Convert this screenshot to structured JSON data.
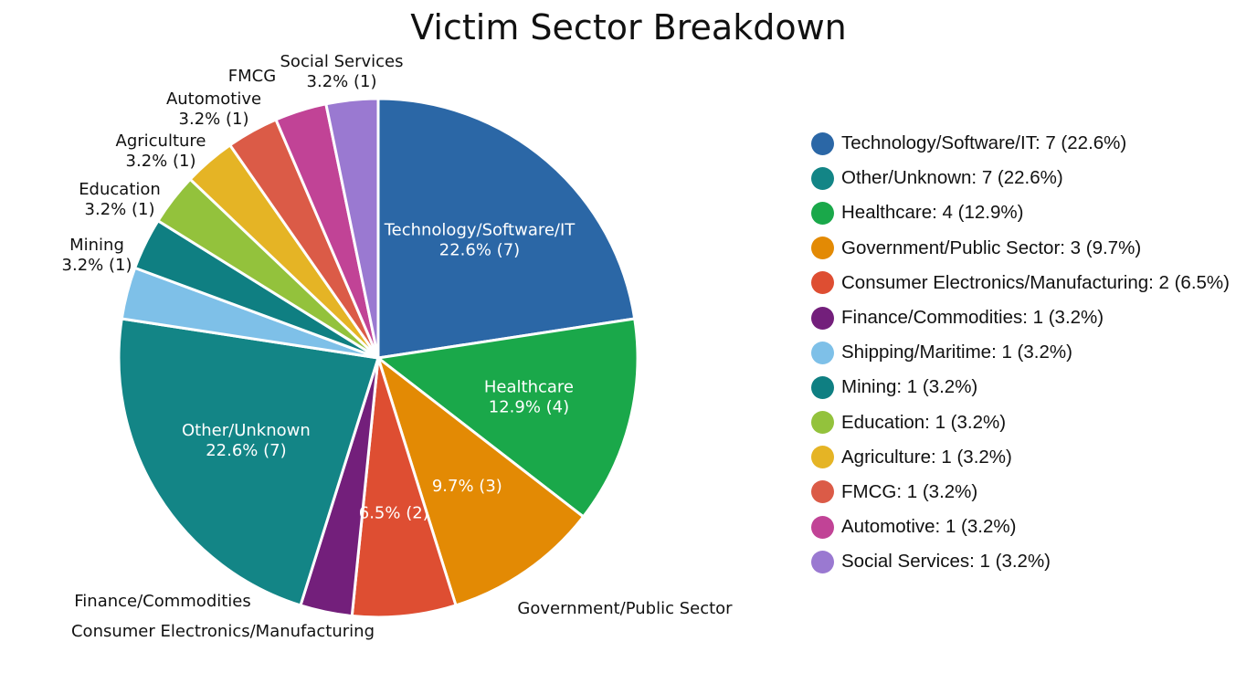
{
  "chart_data": {
    "type": "pie",
    "title": "Victim Sector Breakdown",
    "slices": [
      {
        "label": "Technology/Software/IT",
        "value": 7,
        "percent": "22.6%",
        "color": "#2b67a6",
        "legend": "Technology/Software/IT: 7 (22.6%)",
        "slice_label_name": "Technology/Software/IT",
        "slice_label_value": "22.6% (7)"
      },
      {
        "label": "Healthcare",
        "value": 4,
        "percent": "12.9%",
        "color": "#1aa84a",
        "legend": "Healthcare: 4 (12.9%)",
        "slice_label_name": "Healthcare",
        "slice_label_value": "12.9% (4)"
      },
      {
        "label": "Government/Public Sector",
        "value": 3,
        "percent": "9.7%",
        "color": "#e38a04",
        "legend": "Government/Public Sector: 3 (9.7%)",
        "slice_label_name": "",
        "slice_label_value": "9.7% (3)"
      },
      {
        "label": "Consumer Electronics/Manufacturing",
        "value": 2,
        "percent": "6.5%",
        "color": "#de4e32",
        "legend": "Consumer Electronics/Manufacturing: 2 (6.5%)",
        "slice_label_name": "",
        "slice_label_value": "6.5% (2)"
      },
      {
        "label": "Finance/Commodities",
        "value": 1,
        "percent": "3.2%",
        "color": "#731f7b",
        "legend": "Finance/Commodities: 1 (3.2%)",
        "slice_label_name": "",
        "slice_label_value": ""
      },
      {
        "label": "Other/Unknown",
        "value": 7,
        "percent": "22.6%",
        "color": "#138586",
        "legend": "Other/Unknown: 7 (22.6%)",
        "slice_label_name": "Other/Unknown",
        "slice_label_value": "22.6% (7)"
      },
      {
        "label": "Shipping/Maritime",
        "value": 1,
        "percent": "3.2%",
        "color": "#7ec0e8",
        "legend": "Shipping/Maritime: 1 (3.2%)",
        "slice_label_name": "",
        "slice_label_value": ""
      },
      {
        "label": "Mining",
        "value": 1,
        "percent": "3.2%",
        "color": "#0f7f82",
        "legend": "Mining: 1 (3.2%)",
        "slice_label_name": "",
        "slice_label_value": ""
      },
      {
        "label": "Education",
        "value": 1,
        "percent": "3.2%",
        "color": "#93c23c",
        "legend": "Education: 1 (3.2%)",
        "slice_label_name": "",
        "slice_label_value": ""
      },
      {
        "label": "Agriculture",
        "value": 1,
        "percent": "3.2%",
        "color": "#e5b425",
        "legend": "Agriculture: 1 (3.2%)",
        "slice_label_name": "",
        "slice_label_value": ""
      },
      {
        "label": "FMCG",
        "value": 1,
        "percent": "3.2%",
        "color": "#db5b47",
        "legend": "FMCG: 1 (3.2%)",
        "slice_label_name": "",
        "slice_label_value": ""
      },
      {
        "label": "Automotive",
        "value": 1,
        "percent": "3.2%",
        "color": "#c14396",
        "legend": "Automotive: 1 (3.2%)",
        "slice_label_name": "",
        "slice_label_value": ""
      },
      {
        "label": "Social Services",
        "value": 1,
        "percent": "3.2%",
        "color": "#9a79d1",
        "legend": "Social Services: 1 (3.2%)",
        "slice_label_name": "",
        "slice_label_value": ""
      }
    ],
    "legend_order": [
      "Technology/Software/IT",
      "Other/Unknown",
      "Healthcare",
      "Government/Public Sector",
      "Consumer Electronics/Manufacturing",
      "Finance/Commodities",
      "Shipping/Maritime",
      "Mining",
      "Education",
      "Agriculture",
      "FMCG",
      "Automotive",
      "Social Services"
    ],
    "legend_position": "right",
    "outside_labels": [
      {
        "name": "Mining",
        "value": "3.2% (1)"
      },
      {
        "name": "Education",
        "value": "3.2% (1)"
      },
      {
        "name": "Agriculture",
        "value": "3.2% (1)"
      },
      {
        "name": "Automotive",
        "value": "3.2% (1)"
      },
      {
        "name": "FMCG",
        "value": ""
      },
      {
        "name": "Social Services",
        "value": "3.2% (1)"
      },
      {
        "name": "Finance/Commodities",
        "value": ""
      },
      {
        "name": "Consumer Electronics/Manufacturing",
        "value": ""
      },
      {
        "name": "Government/Public Sector",
        "value": ""
      }
    ]
  }
}
